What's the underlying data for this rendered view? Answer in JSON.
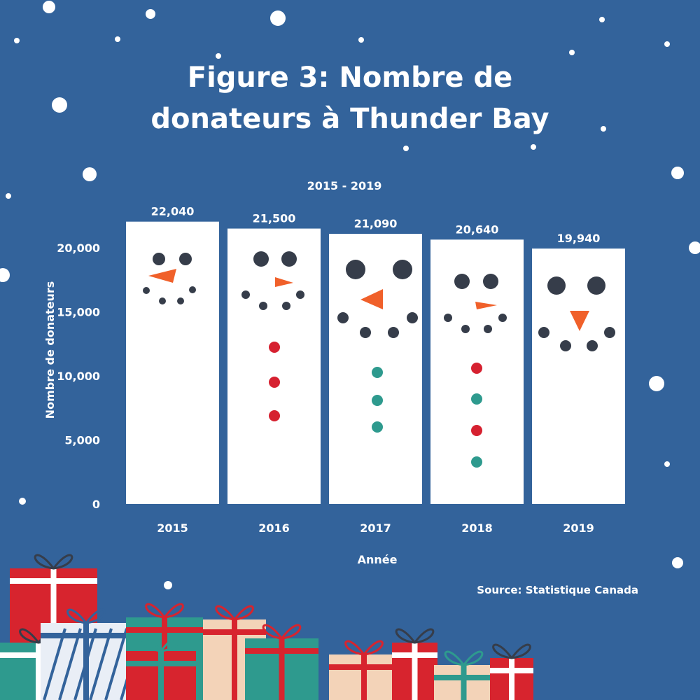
{
  "colors": {
    "background": "#33639b",
    "bar": "#ffffff",
    "text": "#ffffff",
    "snowman_dark": "#363d4a",
    "nose": "#f0602a",
    "button_red": "#d62130",
    "button_teal": "#2e9a8e"
  },
  "source": "Source: Statistique Canada",
  "chart_data": {
    "type": "bar",
    "title": "Figure 3: Nombre de donateurs à Thunder Bay",
    "title_lines": [
      "Figure 3: Nombre de",
      "donateurs à Thunder Bay"
    ],
    "subtitle": "2015 - 2019",
    "xlabel": "Année",
    "ylabel": "Nombre de donateurs",
    "categories": [
      "2015",
      "2016",
      "2017",
      "2018",
      "2019"
    ],
    "values": [
      22040,
      21500,
      21090,
      20640,
      19940
    ],
    "value_labels": [
      "22,040",
      "21,500",
      "21,090",
      "20,640",
      "19,940"
    ],
    "ylim": [
      0,
      20000
    ],
    "yticks": [
      0,
      5000,
      10000,
      15000,
      20000
    ],
    "ytick_labels": [
      "0",
      "5,000",
      "10,000",
      "15,000",
      "20,000"
    ],
    "grid": false
  },
  "decorations": {
    "bar_faces": "snowman",
    "snowman_buttons": [
      [],
      [
        "red",
        "red",
        "red"
      ],
      [
        "teal",
        "teal",
        "teal"
      ],
      [
        "red",
        "teal",
        "red",
        "teal"
      ],
      []
    ],
    "footer": "gift-boxes"
  }
}
